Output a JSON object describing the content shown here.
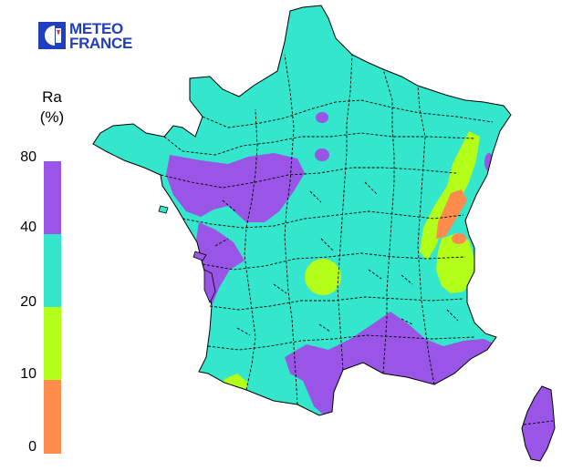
{
  "logo": {
    "line1": "METEO",
    "line2": "FRANCE"
  },
  "legend": {
    "title_line1": "Ra",
    "title_line2": "(%)",
    "ticks": [
      "80",
      "40",
      "20",
      "10",
      "0"
    ],
    "bins": [
      {
        "range": "40–80",
        "color": "#9955e6"
      },
      {
        "range": "20–40",
        "color": "#33e6cc"
      },
      {
        "range": "10–20",
        "color": "#b3ff1a"
      },
      {
        "range": "0–10",
        "color": "#ff8c4d"
      }
    ]
  },
  "colors": {
    "class_40_80": "#9955e6",
    "class_20_40": "#33e6cc",
    "class_10_20": "#b3ff1a",
    "class_0_10": "#ff8c4d",
    "borders": "#000000",
    "logo_blue": "#1f3fbf"
  }
}
